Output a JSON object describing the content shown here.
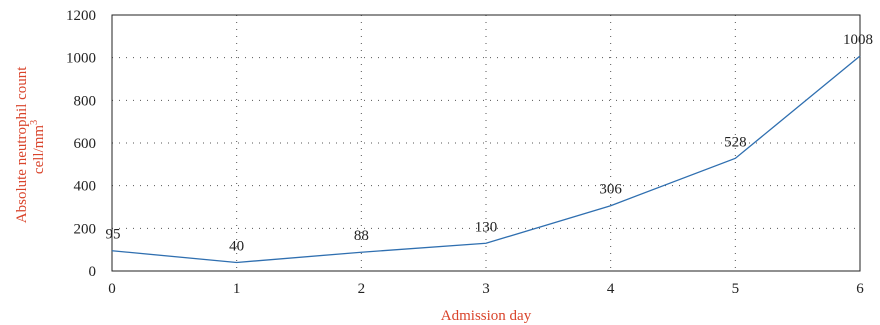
{
  "chart_data": {
    "type": "line",
    "x": [
      0,
      1,
      2,
      3,
      4,
      5,
      6
    ],
    "series": [
      {
        "values": [
          95,
          40,
          88,
          130,
          306,
          528,
          1008
        ],
        "color": "#2f6fb0"
      }
    ],
    "data_labels": [
      "95",
      "40",
      "88",
      "130",
      "306",
      "528",
      "1008"
    ],
    "x_ticks": [
      "0",
      "1",
      "2",
      "3",
      "4",
      "5",
      "6"
    ],
    "y_ticks": [
      "0",
      "200",
      "400",
      "600",
      "800",
      "1000",
      "1200"
    ],
    "xlim": [
      0,
      6
    ],
    "ylim": [
      0,
      1200
    ],
    "xlabel": "Admission day",
    "ylabel_line1": "Absolute neutrophil count",
    "ylabel_line2_base": "cell/mm",
    "ylabel_line2_sup": "3",
    "axis_title_color": "#d9442b",
    "grid": true,
    "legend": "none"
  }
}
